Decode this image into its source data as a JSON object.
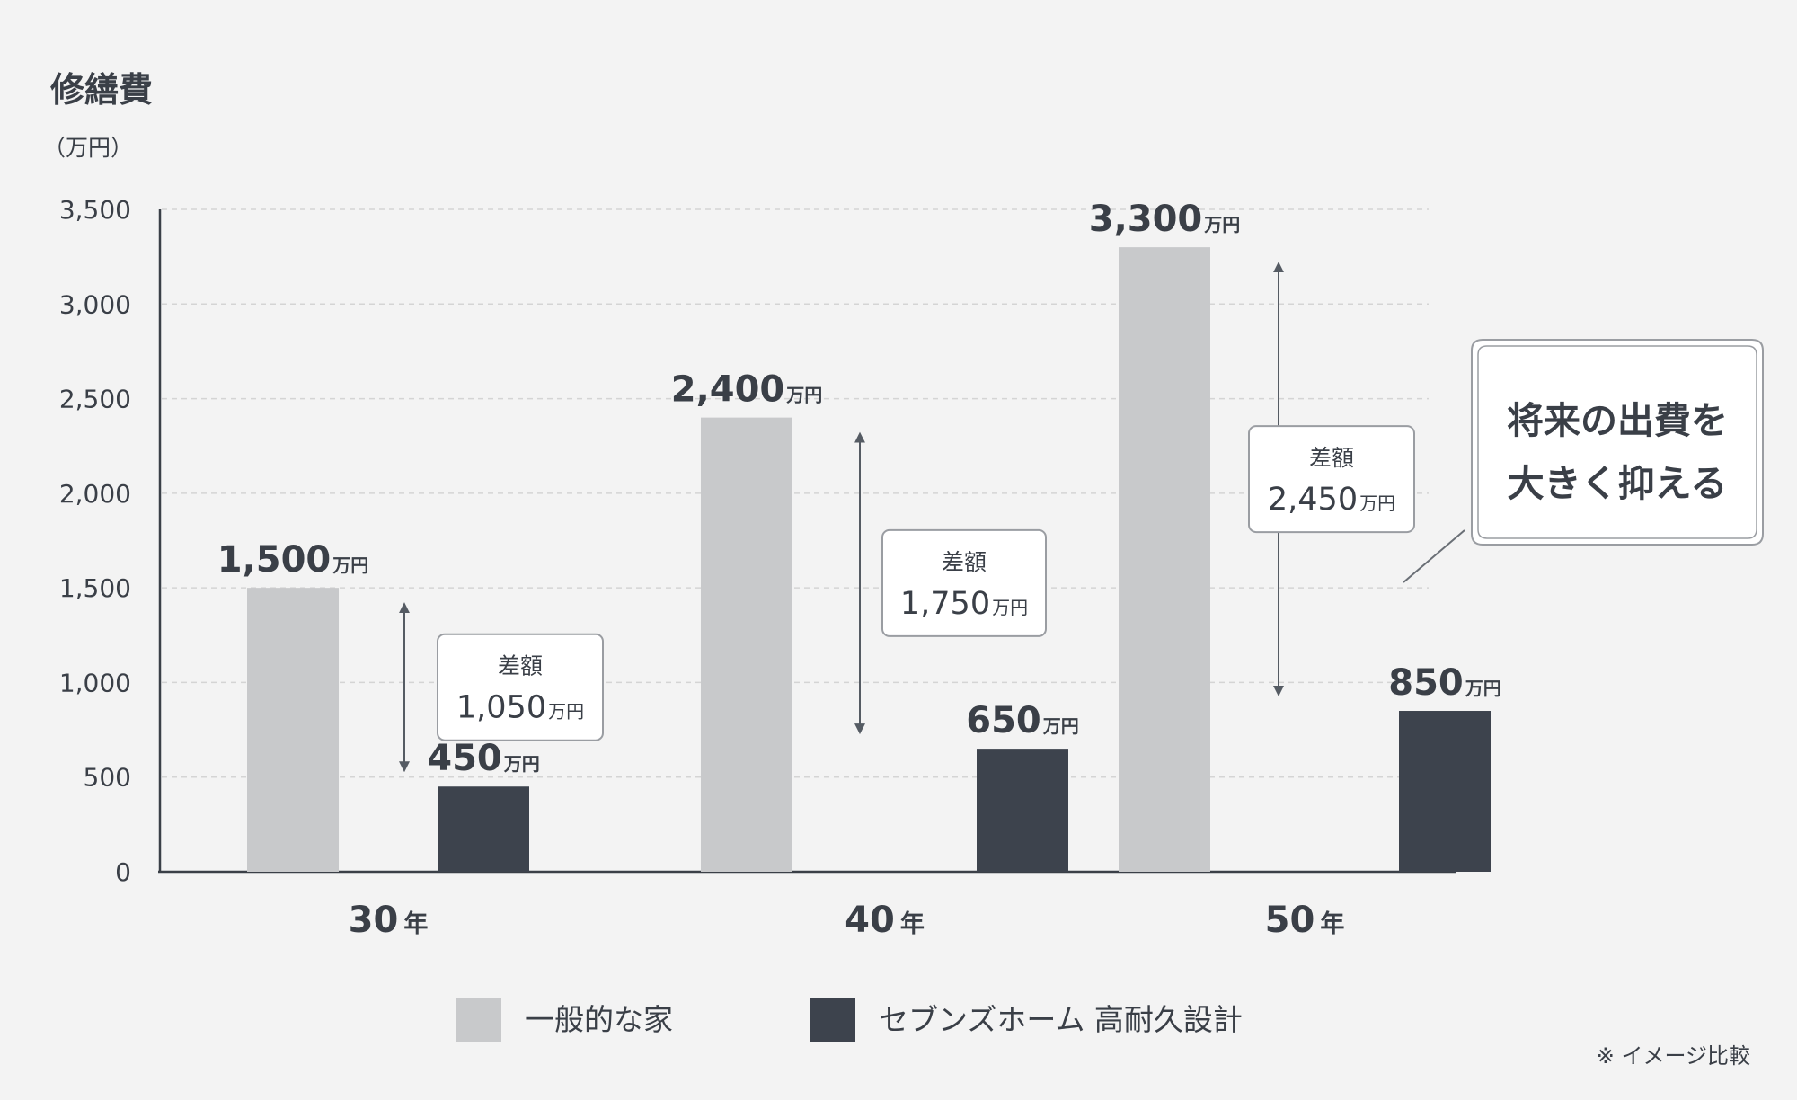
{
  "chart_data": {
    "type": "bar",
    "title": "修繕費",
    "ylabel": "（万円）",
    "ylim": [
      0,
      3500
    ],
    "yticks": [
      0,
      500,
      1000,
      1500,
      2000,
      2500,
      3000,
      3500
    ],
    "ytick_labels": [
      "0",
      "500",
      "1,000",
      "1,500",
      "2,000",
      "2,500",
      "3,000",
      "3,500"
    ],
    "grid": true,
    "categories": [
      "30",
      "40",
      "50"
    ],
    "category_unit": "年",
    "unit": "万円",
    "series": [
      {
        "name": "一般的な家",
        "color": "#c8c9cb",
        "values": [
          1500,
          2400,
          3300
        ],
        "labels": [
          "1,500",
          "2,400",
          "3,300"
        ]
      },
      {
        "name": "セブンズホーム 高耐久設計",
        "color": "#3d434d",
        "values": [
          450,
          650,
          850
        ],
        "labels": [
          "450",
          "650",
          "850"
        ]
      }
    ],
    "differences": [
      {
        "label": "差額",
        "value": 1050,
        "value_text": "1,050",
        "unit": "万円"
      },
      {
        "label": "差額",
        "value": 1750,
        "value_text": "1,750",
        "unit": "万円"
      },
      {
        "label": "差額",
        "value": 2450,
        "value_text": "2,450",
        "unit": "万円"
      }
    ],
    "legend_position": "bottom-center"
  },
  "callout": {
    "lines": [
      "将来の出費を",
      "大きく抑える"
    ]
  },
  "note": "※ イメージ比較",
  "colors": {
    "background": "#f3f3f3",
    "text": "#3a3f47",
    "grid": "#d4d4d4",
    "axis": "#3a3f47"
  }
}
